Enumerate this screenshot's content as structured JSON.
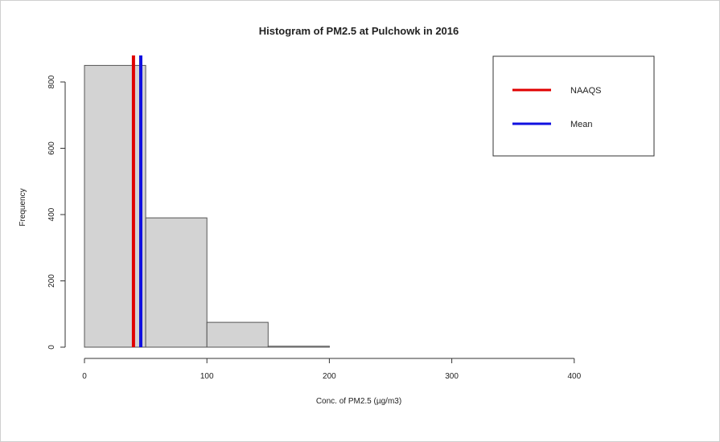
{
  "chart_data": {
    "type": "bar",
    "title": "Histogram of PM2.5 at Pulchowk in 2016",
    "xlabel": "Conc. of PM2.5 (µg/m3)",
    "ylabel": "Frequency",
    "xlim": [
      0,
      450
    ],
    "ylim": [
      0,
      850
    ],
    "xticks": [
      0,
      100,
      200,
      300,
      400
    ],
    "yticks": [
      0,
      200,
      400,
      600,
      800
    ],
    "bins": [
      {
        "x0": 0,
        "x1": 50,
        "count": 850
      },
      {
        "x0": 50,
        "x1": 100,
        "count": 390
      },
      {
        "x0": 100,
        "x1": 150,
        "count": 75
      },
      {
        "x0": 150,
        "x1": 200,
        "count": 3
      },
      {
        "x0": 200,
        "x1": 250,
        "count": 0
      },
      {
        "x0": 250,
        "x1": 300,
        "count": 0
      },
      {
        "x0": 300,
        "x1": 350,
        "count": 0
      },
      {
        "x0": 350,
        "x1": 400,
        "count": 0
      },
      {
        "x0": 400,
        "x1": 450,
        "count": 0
      }
    ],
    "vlines": [
      {
        "name": "NAAQS",
        "x": 40,
        "color": "#e00000"
      },
      {
        "name": "Mean",
        "x": 46,
        "color": "#1010e0"
      }
    ],
    "legend": {
      "position": "top-right",
      "entries": [
        {
          "label": "NAAQS",
          "color": "#e00000"
        },
        {
          "label": "Mean",
          "color": "#1010e0"
        }
      ]
    },
    "bar_fill": "#d3d3d3",
    "bar_stroke": "#555555",
    "grid": false
  }
}
